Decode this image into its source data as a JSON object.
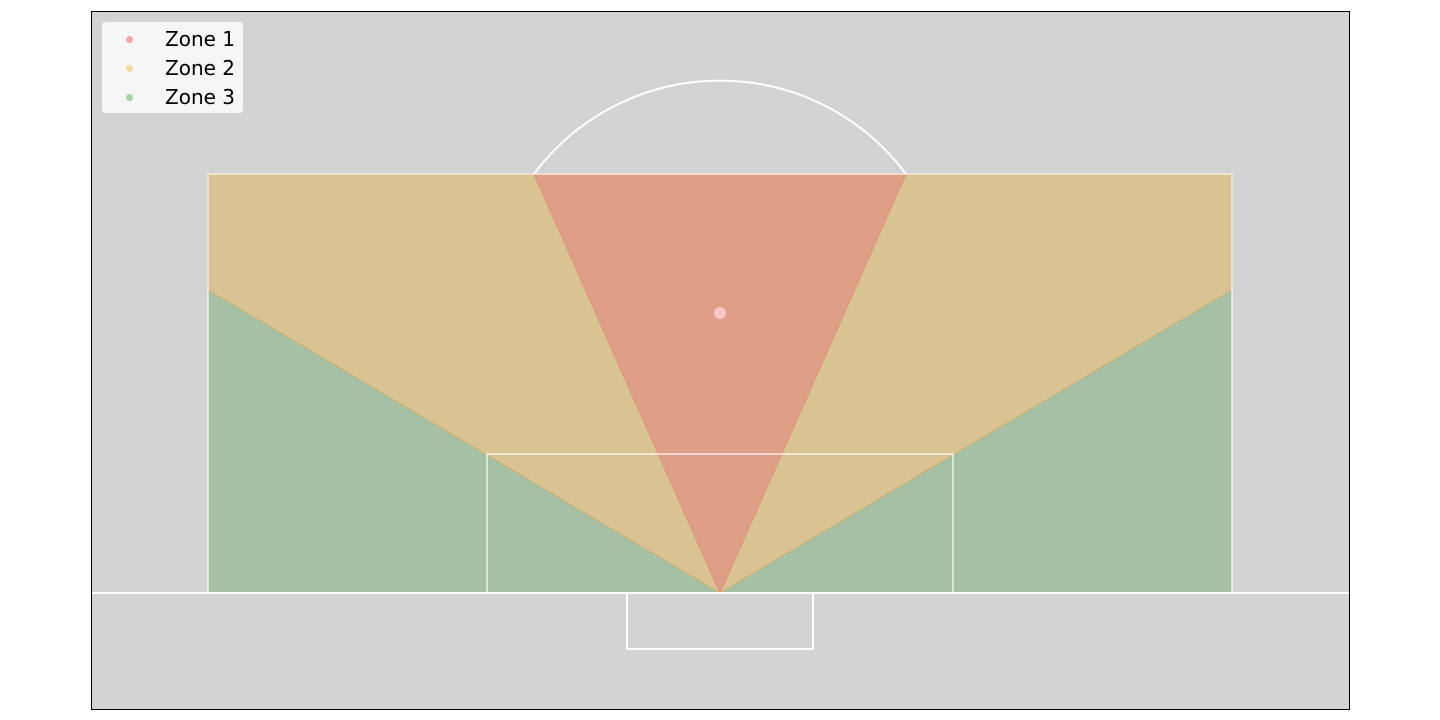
{
  "legend": {
    "items": [
      {
        "label": "Zone 1",
        "color": "#f4a6a6"
      },
      {
        "label": "Zone 2",
        "color": "#f5d8a0"
      },
      {
        "label": "Zone 3",
        "color": "#a6d3a6"
      }
    ]
  },
  "colors": {
    "background": "#d3d3d3",
    "lines": "#ffffff",
    "zone1_fill": "#e38080",
    "zone2_fill": "#f0c48a",
    "zone3_fill": "#7fb07f"
  }
}
